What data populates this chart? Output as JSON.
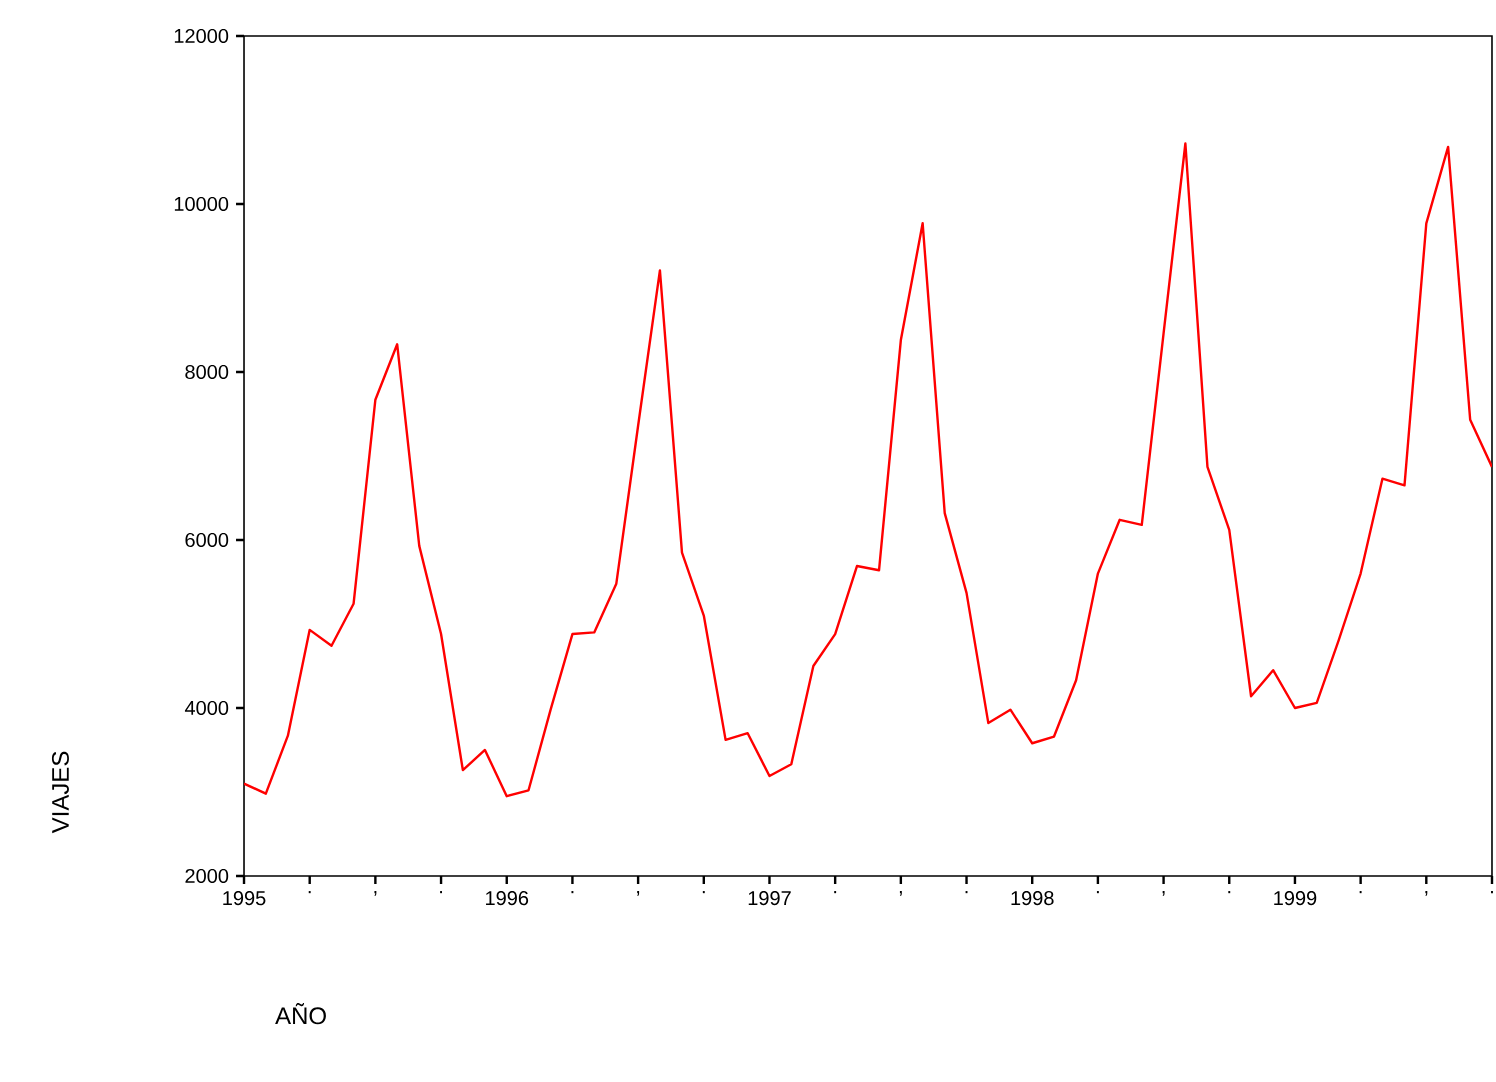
{
  "chart_data": {
    "type": "line",
    "xlabel": "AÑO",
    "ylabel": "VIAJES",
    "x": [
      1995.0,
      1995.083,
      1995.167,
      1995.25,
      1995.333,
      1995.417,
      1995.5,
      1995.583,
      1995.667,
      1995.75,
      1995.833,
      1995.917,
      1996.0,
      1996.083,
      1996.167,
      1996.25,
      1996.333,
      1996.417,
      1996.5,
      1996.583,
      1996.667,
      1996.75,
      1996.833,
      1996.917,
      1997.0,
      1997.083,
      1997.167,
      1997.25,
      1997.333,
      1997.417,
      1997.5,
      1997.583,
      1997.667,
      1997.75,
      1997.833,
      1997.917,
      1998.0,
      1998.083,
      1998.167,
      1998.25,
      1998.333,
      1998.417,
      1998.5,
      1998.583,
      1998.667,
      1998.75,
      1998.833,
      1998.917,
      1999.0,
      1999.083,
      1999.167,
      1999.25,
      1999.333,
      1999.417,
      1999.5,
      1999.583,
      1999.667,
      1999.75
    ],
    "series": [
      {
        "color": "#ff0000",
        "values": [
          3100,
          2980,
          3670,
          4930,
          4740,
          5240,
          7670,
          8330,
          5930,
          4880,
          3260,
          3500,
          2950,
          3020,
          3980,
          4880,
          4900,
          5480,
          7360,
          9210,
          5850,
          5100,
          3620,
          3700,
          3190,
          3330,
          4500,
          4880,
          5690,
          5640,
          8380,
          9770,
          6320,
          5370,
          3820,
          3980,
          3580,
          3660,
          4330,
          5600,
          6240,
          6180,
          8460,
          10720,
          6870,
          6120,
          4140,
          4450,
          4000,
          4060,
          4810,
          5600,
          6730,
          6650,
          9770,
          10680,
          7430,
          6870
        ]
      }
    ],
    "xlim": [
      1995,
      1999.75
    ],
    "xticks": [
      1995,
      {
        "value": 1995.25,
        "label": "."
      },
      {
        "value": 1995.5,
        "label": ","
      },
      {
        "value": 1995.75,
        "label": "."
      },
      1996,
      {
        "value": 1996.25,
        "label": "."
      },
      {
        "value": 1996.5,
        "label": ","
      },
      {
        "value": 1996.75,
        "label": "."
      },
      1997,
      {
        "value": 1997.25,
        "label": "."
      },
      {
        "value": 1997.5,
        "label": ","
      },
      {
        "value": 1997.75,
        "label": "."
      },
      1998,
      {
        "value": 1998.25,
        "label": "."
      },
      {
        "value": 1998.5,
        "label": ","
      },
      {
        "value": 1998.75,
        "label": "."
      },
      1999,
      {
        "value": 1999.25,
        "label": "."
      },
      {
        "value": 1999.5,
        "label": ","
      },
      {
        "value": 1999.75,
        "label": "."
      }
    ],
    "ylim": [
      2000,
      12000
    ],
    "yticks": [
      2000,
      4000,
      6000,
      8000,
      10000,
      12000
    ],
    "grid": false,
    "marker": "none",
    "line_style": "solid"
  }
}
